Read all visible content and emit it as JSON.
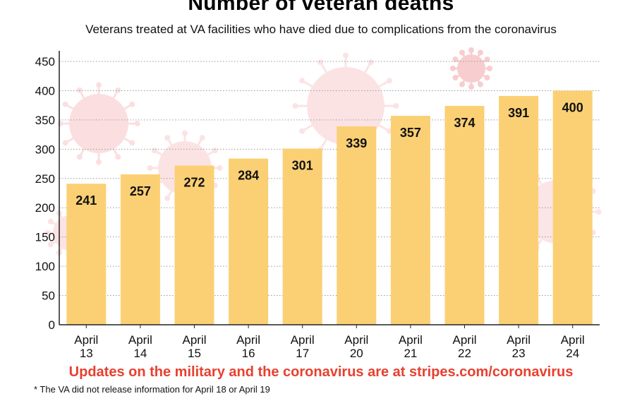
{
  "colors": {
    "bar": "#fbd074",
    "bar_label": "#111111",
    "accent_red": "#e8402f",
    "virus": "#f4a5a8",
    "axis": "#222222",
    "grid": "#9a9a9a"
  },
  "chart_data": {
    "type": "bar",
    "title": "Number of veteran deaths",
    "subtitle": "Veterans treated at VA facilities who have died due to complications from the coronavirus",
    "categories": [
      [
        "April",
        "13"
      ],
      [
        "April",
        "14"
      ],
      [
        "April",
        "15"
      ],
      [
        "April",
        "16"
      ],
      [
        "April",
        "17"
      ],
      [
        "April",
        "20"
      ],
      [
        "April",
        "21"
      ],
      [
        "April",
        "22"
      ],
      [
        "April",
        "23"
      ],
      [
        "April",
        "24"
      ]
    ],
    "values": [
      241,
      257,
      272,
      284,
      301,
      339,
      357,
      374,
      391,
      400
    ],
    "ylim": [
      0,
      450
    ],
    "yticks": [
      0,
      50,
      100,
      150,
      200,
      250,
      300,
      350,
      400,
      450
    ],
    "grid": "horizontal dotted",
    "data_labels": true
  },
  "footer": {
    "source_note": "Updates on the military and the coronavirus are at stripes.com/coronavirus",
    "footnote": "* The VA did not release information for April 18 or April 19"
  }
}
